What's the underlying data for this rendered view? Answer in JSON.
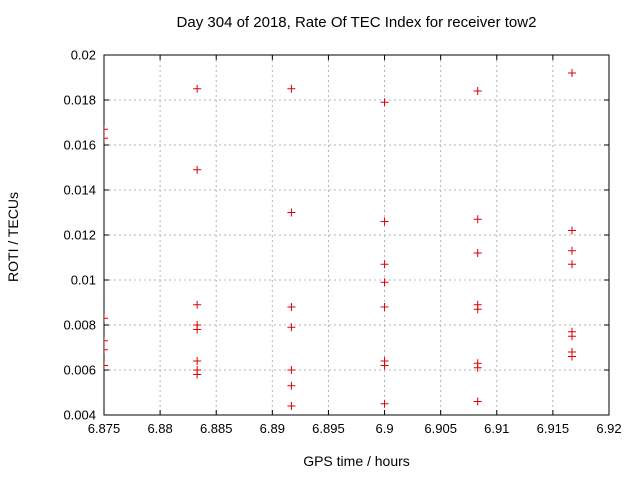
{
  "window": {
    "background": "#ffffff"
  },
  "chart_data": {
    "type": "scatter",
    "title": "Day 304 of 2018, Rate Of TEC Index for receiver tow2",
    "xlabel": "GPS time / hours",
    "ylabel": "ROTI / TECUs",
    "xlim": [
      6.875,
      6.92
    ],
    "ylim": [
      0.004,
      0.02
    ],
    "xticks": [
      6.875,
      6.88,
      6.885,
      6.89,
      6.895,
      6.9,
      6.905,
      6.91,
      6.915,
      6.92
    ],
    "xtick_labels": [
      "6.875",
      "6.88",
      "6.885",
      "6.89",
      "6.895",
      "6.9",
      "6.905",
      "6.91",
      "6.915",
      "6.92"
    ],
    "yticks": [
      0.004,
      0.006,
      0.008,
      0.01,
      0.012,
      0.014,
      0.016,
      0.018,
      0.02
    ],
    "ytick_labels": [
      "0.004",
      "0.006",
      "0.008",
      "0.01",
      "0.012",
      "0.014",
      "0.016",
      "0.018",
      "0.02"
    ],
    "grid": true,
    "grid_style": "dashed",
    "legend": "none",
    "marker": "plus",
    "marker_color": "#e00000",
    "grid_color": "#b3b3b3",
    "axis_color": "#000000",
    "series": [
      {
        "name": "ROTI",
        "points": [
          [
            6.875,
            0.0167
          ],
          [
            6.875,
            0.0163
          ],
          [
            6.875,
            0.0083
          ],
          [
            6.875,
            0.0073
          ],
          [
            6.875,
            0.0069
          ],
          [
            6.875,
            0.0062
          ],
          [
            6.8833,
            0.0185
          ],
          [
            6.8833,
            0.0149
          ],
          [
            6.8833,
            0.0089
          ],
          [
            6.8833,
            0.008
          ],
          [
            6.8833,
            0.0078
          ],
          [
            6.8833,
            0.0064
          ],
          [
            6.8833,
            0.006
          ],
          [
            6.8833,
            0.0058
          ],
          [
            6.8917,
            0.0185
          ],
          [
            6.8917,
            0.013
          ],
          [
            6.8917,
            0.0088
          ],
          [
            6.8917,
            0.0079
          ],
          [
            6.8917,
            0.006
          ],
          [
            6.8917,
            0.0053
          ],
          [
            6.8917,
            0.0044
          ],
          [
            6.9,
            0.0179
          ],
          [
            6.9,
            0.0126
          ],
          [
            6.9,
            0.0107
          ],
          [
            6.9,
            0.0099
          ],
          [
            6.9,
            0.0088
          ],
          [
            6.9,
            0.0064
          ],
          [
            6.9,
            0.0062
          ],
          [
            6.9,
            0.0045
          ],
          [
            6.9083,
            0.0184
          ],
          [
            6.9083,
            0.0127
          ],
          [
            6.9083,
            0.0112
          ],
          [
            6.9083,
            0.0089
          ],
          [
            6.9083,
            0.0087
          ],
          [
            6.9083,
            0.0063
          ],
          [
            6.9083,
            0.0061
          ],
          [
            6.9083,
            0.0046
          ],
          [
            6.9167,
            0.0192
          ],
          [
            6.9167,
            0.0122
          ],
          [
            6.9167,
            0.0113
          ],
          [
            6.9167,
            0.0107
          ],
          [
            6.9167,
            0.0077
          ],
          [
            6.9167,
            0.0075
          ],
          [
            6.9167,
            0.0068
          ],
          [
            6.9167,
            0.0066
          ]
        ]
      }
    ]
  }
}
